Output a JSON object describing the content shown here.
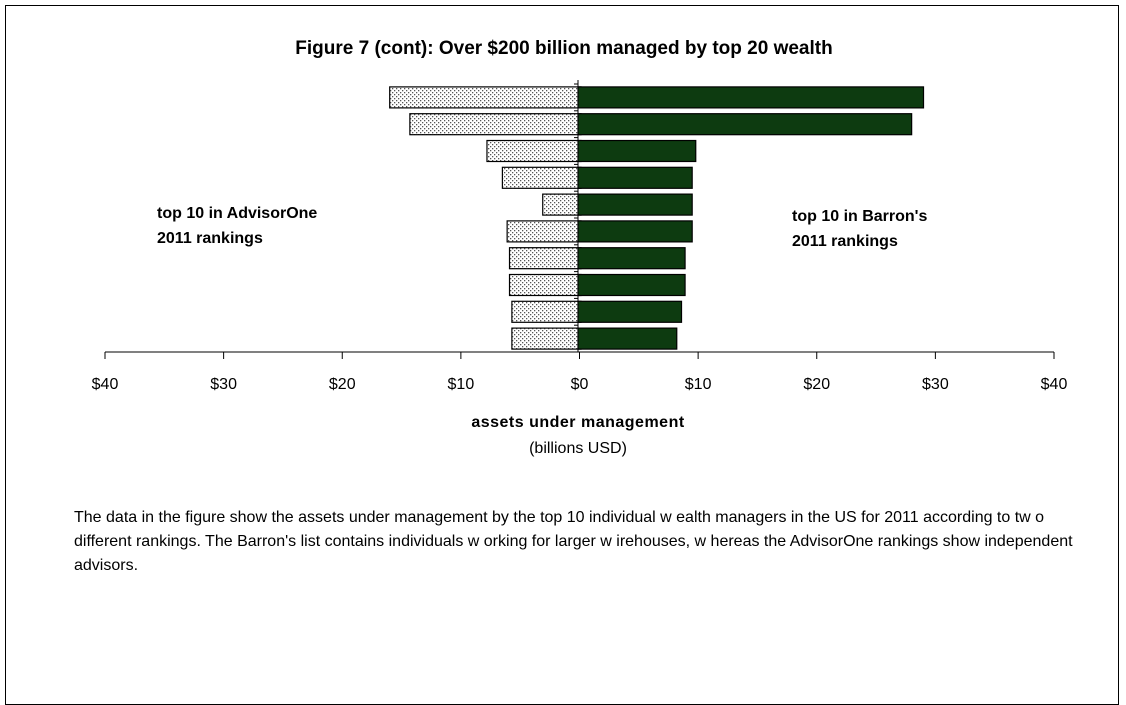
{
  "chart_data": {
    "type": "bar",
    "orientation": "horizontal-diverging",
    "title": "Figure 7 (cont): Over $200 billion managed by top 20 wealth",
    "xlabel": "assets under management",
    "xlabel_sub": "(billions USD)",
    "xlim": [
      -40,
      40
    ],
    "x_ticks": [
      -40,
      -30,
      -20,
      -10,
      0,
      10,
      20,
      30,
      40
    ],
    "x_tick_labels": [
      "$40",
      "$30",
      "$20",
      "$10",
      "$0",
      "$10",
      "$20",
      "$30",
      "$40"
    ],
    "rank_count": 10,
    "series": [
      {
        "side": "left",
        "values": [
          16,
          14.3,
          7.8,
          6.5,
          3.1,
          6.1,
          5.9,
          5.9,
          5.7,
          5.7
        ],
        "fill": "dotted",
        "color": "#e0e0e0"
      },
      {
        "side": "right",
        "values": [
          29,
          28,
          9.8,
          9.5,
          9.5,
          9.5,
          8.9,
          8.9,
          8.6,
          8.2
        ],
        "fill": "solid",
        "color": "#0d3b10"
      }
    ],
    "annotations": [
      {
        "side": "left",
        "lines": [
          "top 10 in AdvisorOne",
          "2011 rankings"
        ]
      },
      {
        "side": "right",
        "lines": [
          "top 10 in Barron's",
          "2011 rankings"
        ]
      }
    ],
    "grid": false,
    "legend": "none"
  },
  "caption": "The data in the figure show  the assets under management by the top 10 individual w ealth managers in the US for 2011 according to tw o different rankings. The Barron's list contains individuals w orking for larger w irehouses, w hereas the AdvisorOne rankings show  independent advisors."
}
